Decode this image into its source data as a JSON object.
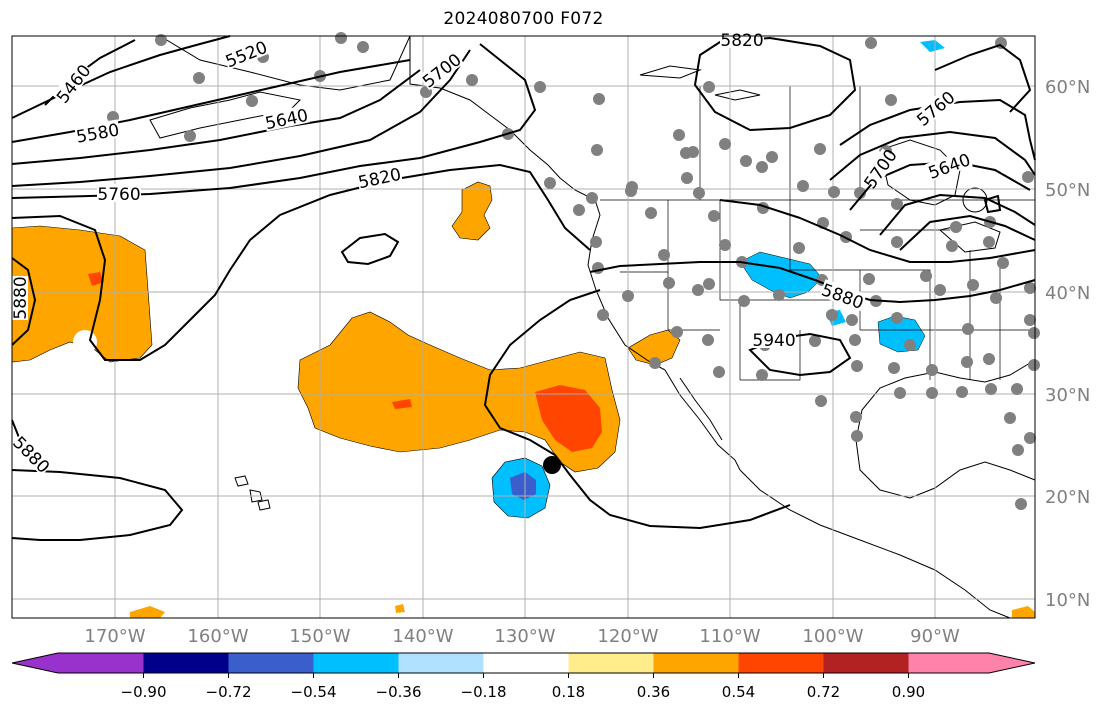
{
  "title": "2024080700 F072",
  "lon_labels": [
    "170°W",
    "160°W",
    "150°W",
    "140°W",
    "130°W",
    "120°W",
    "110°W",
    "100°W",
    "90°W"
  ],
  "lat_labels": [
    "60°N",
    "50°N",
    "40°N",
    "30°N",
    "20°N",
    "10°N"
  ],
  "colorbar": {
    "colors": [
      "#9932CC",
      "#00008B",
      "#3A5FCD",
      "#00BFFF",
      "#B0E2FF",
      "#FFFFFF",
      "#FFEC8B",
      "#FFA500",
      "#FF4500",
      "#B22222",
      "#FF82AB"
    ],
    "tick_labels": [
      "−0.90",
      "−0.72",
      "−0.54",
      "−0.36",
      "−0.18",
      "0.18",
      "0.36",
      "0.54",
      "0.72",
      "0.90"
    ]
  },
  "contour_labels": [
    "5460",
    "5520",
    "5580",
    "5640",
    "5700",
    "5760",
    "5820",
    "5820",
    "5880",
    "5880",
    "5880",
    "5940",
    "5760",
    "5640",
    "5700"
  ],
  "colors": {
    "grid": "#b0b0b0",
    "contour": "#000000",
    "station": "#808080",
    "orange": "#FFA500",
    "red_orange": "#FF4500",
    "light_blue": "#00BFFF",
    "dark_blue": "#3A5FCD"
  }
}
